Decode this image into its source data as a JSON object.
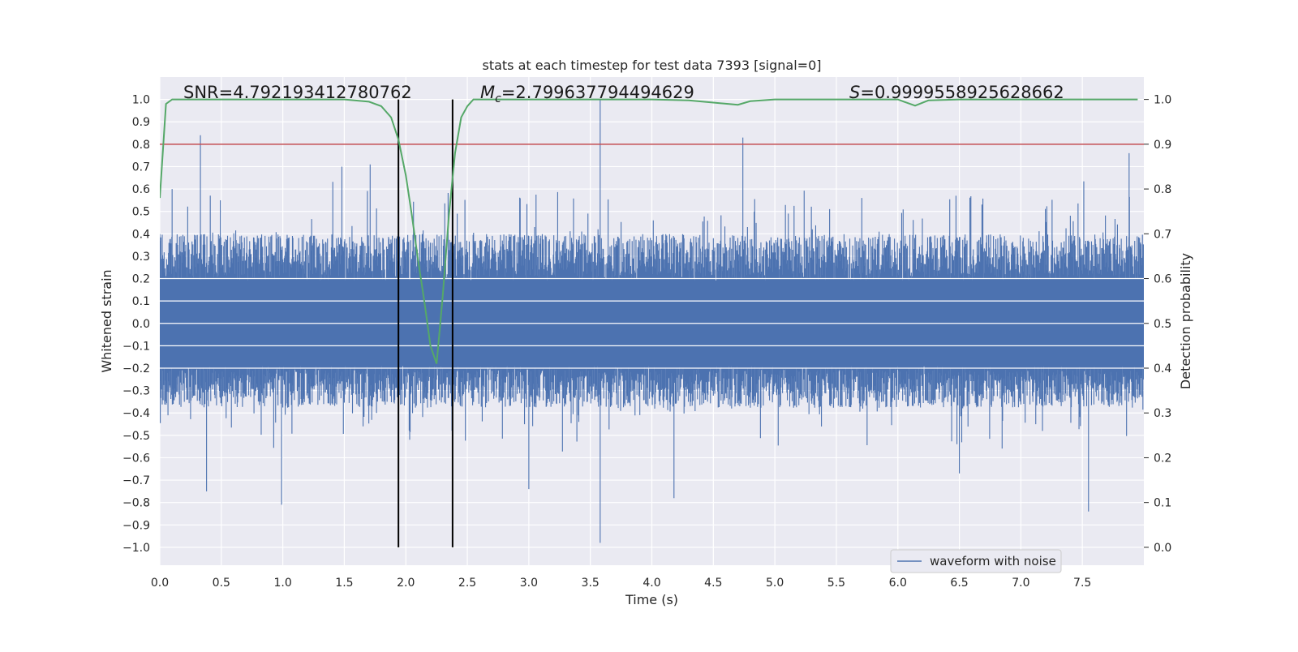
{
  "chart_data": {
    "type": "line",
    "title": "stats at each timestep for test data 7393 [signal=0]",
    "xlabel": "Time (s)",
    "ylabel": "Whitened strain",
    "y2label": "Detection probability",
    "xlim": [
      0.0,
      8.0
    ],
    "ylim": [
      -1.08,
      1.1
    ],
    "y2lim": [
      -0.04,
      1.05
    ],
    "xticks": [
      0.0,
      0.5,
      1.0,
      1.5,
      2.0,
      2.5,
      3.0,
      3.5,
      4.0,
      4.5,
      5.0,
      5.5,
      6.0,
      6.5,
      7.0,
      7.5
    ],
    "xtick_labels": [
      "0.0",
      "0.5",
      "1.0",
      "1.5",
      "2.0",
      "2.5",
      "3.0",
      "3.5",
      "4.0",
      "4.5",
      "5.0",
      "5.5",
      "6.0",
      "6.5",
      "7.0",
      "7.5"
    ],
    "yticks": [
      1.0,
      0.9,
      0.8,
      0.7,
      0.6,
      0.5,
      0.4,
      0.3,
      0.2,
      0.1,
      0.0,
      -0.1,
      -0.2,
      -0.3,
      -0.4,
      -0.5,
      -0.6,
      -0.7,
      -0.8,
      -0.9,
      -1.0
    ],
    "ytick_labels": [
      "1.0",
      "0.9",
      "0.8",
      "0.7",
      "0.6",
      "0.5",
      "0.4",
      "0.3",
      "0.2",
      "0.1",
      "0.0",
      "−0.1",
      "−0.2",
      "−0.3",
      "−0.4",
      "−0.5",
      "−0.6",
      "−0.7",
      "−0.8",
      "−0.9",
      "−1.0"
    ],
    "y2ticks": [
      1.0,
      0.9,
      0.8,
      0.7,
      0.6,
      0.5,
      0.4,
      0.3,
      0.2,
      0.1,
      0.0
    ],
    "y2tick_labels": [
      "1.0",
      "0.9",
      "0.8",
      "0.7",
      "0.6",
      "0.5",
      "0.4",
      "0.3",
      "0.2",
      "0.1",
      "0.0"
    ],
    "grid": true,
    "legend": {
      "position": "bottom-right",
      "entries": [
        "waveform with noise"
      ]
    },
    "annotations": {
      "snr_text": "SNR=4.792193412780762",
      "mc_symbol": "M",
      "mc_subscript": "c",
      "mc_value": "=2.799637794494629",
      "s_symbol": "S",
      "s_value": "=0.9999558925628662"
    },
    "threshold": {
      "axis": "right",
      "value": 0.9,
      "color": "#c44e52"
    },
    "event_markers": {
      "x": [
        1.94,
        2.38
      ],
      "y_range": [
        -1.0,
        1.0
      ],
      "color": "#000000"
    },
    "waveform": {
      "name": "waveform with noise",
      "color": "#4c72b0",
      "duration": 8.0,
      "samples": 2048,
      "core_envelope": 0.19,
      "upper_typical": 0.38,
      "lower_typical": -0.36,
      "peaks": [
        {
          "x": 0.33,
          "y": 0.84
        },
        {
          "x": 0.38,
          "y": -0.75
        },
        {
          "x": 0.99,
          "y": -0.81
        },
        {
          "x": 1.48,
          "y": 0.7
        },
        {
          "x": 1.71,
          "y": 0.71
        },
        {
          "x": 3.58,
          "y": 1.0
        },
        {
          "x": 3.58,
          "y": -0.98
        },
        {
          "x": 4.18,
          "y": -0.78
        },
        {
          "x": 4.74,
          "y": 0.83
        },
        {
          "x": 7.55,
          "y": -0.84
        },
        {
          "x": 7.88,
          "y": 0.76
        },
        {
          "x": 3.0,
          "y": -0.74
        },
        {
          "x": 0.1,
          "y": 0.6
        },
        {
          "x": 6.5,
          "y": -0.67
        }
      ]
    },
    "detection_probability": {
      "name": "detection probability",
      "color": "#55a868",
      "x": [
        0.0,
        0.05,
        0.1,
        0.2,
        0.5,
        1.0,
        1.5,
        1.7,
        1.8,
        1.88,
        1.94,
        2.0,
        2.05,
        2.1,
        2.15,
        2.2,
        2.25,
        2.3,
        2.35,
        2.4,
        2.45,
        2.5,
        2.55,
        2.6,
        3.0,
        3.5,
        4.0,
        4.3,
        4.5,
        4.7,
        4.8,
        5.0,
        5.5,
        6.0,
        6.05,
        6.14,
        6.25,
        6.5,
        7.0,
        7.5,
        7.95
      ],
      "values": [
        0.78,
        0.99,
        1.0,
        1.0,
        1.0,
        1.0,
        1.0,
        0.995,
        0.985,
        0.96,
        0.91,
        0.83,
        0.74,
        0.64,
        0.55,
        0.45,
        0.41,
        0.56,
        0.74,
        0.88,
        0.96,
        0.985,
        1.0,
        1.0,
        1.0,
        1.0,
        1.0,
        0.998,
        0.993,
        0.988,
        0.996,
        1.0,
        1.0,
        1.0,
        0.995,
        0.986,
        0.998,
        1.0,
        1.0,
        1.0,
        1.0
      ]
    }
  }
}
